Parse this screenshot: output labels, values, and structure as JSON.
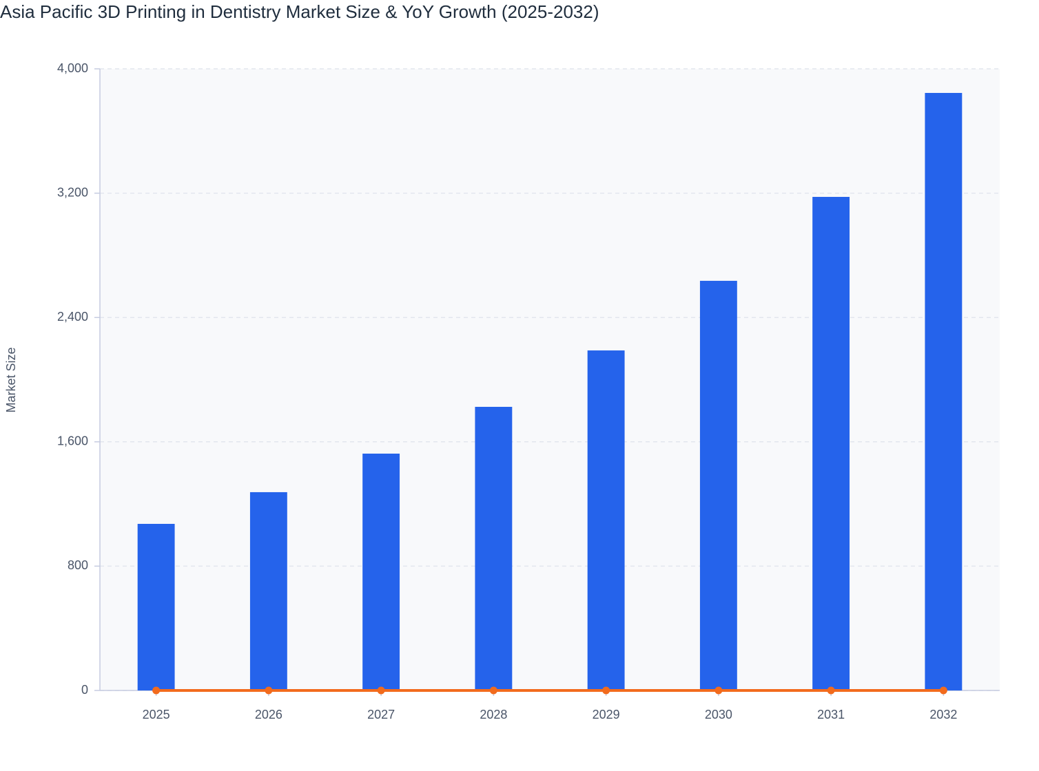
{
  "chart_data": {
    "type": "bar",
    "title": "Asia Pacific 3D Printing in Dentistry Market Size & YoY Growth (2025-2032)",
    "y_label": "Market Size",
    "categories": [
      "2025",
      "2026",
      "2027",
      "2028",
      "2029",
      "2030",
      "2031",
      "2032"
    ],
    "series": [
      {
        "type": "bar",
        "color": "#2563eb",
        "values": [
          1072,
          1276,
          1524,
          1825,
          2188,
          2636,
          3176,
          3845
        ]
      },
      {
        "type": "line",
        "color": "#f26b1d",
        "values": [
          0,
          0,
          0,
          0,
          0,
          0,
          0,
          0
        ]
      }
    ],
    "ylim": [
      0,
      4000
    ],
    "yticks": [
      0,
      800,
      {
        "value": 1600,
        "label": "1,600"
      },
      {
        "value": 2400,
        "label": "2,400"
      },
      {
        "value": 3200,
        "label": "3,200"
      },
      {
        "value": 4000,
        "label": "4,000"
      }
    ],
    "grid": true
  }
}
